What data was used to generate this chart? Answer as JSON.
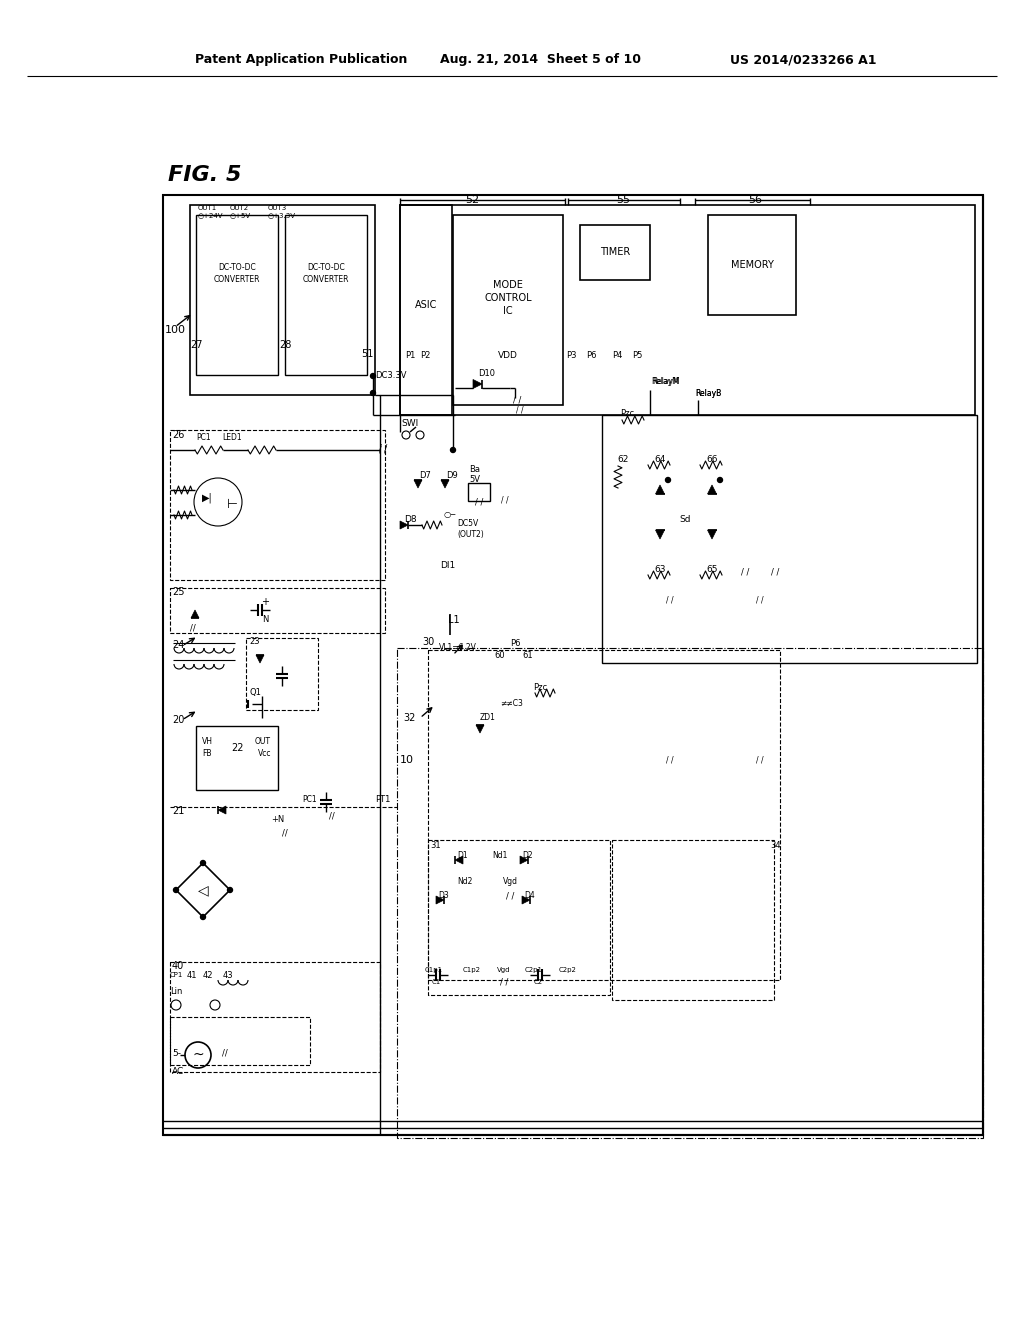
{
  "bg_color": "#ffffff",
  "header_left": "Patent Application Publication",
  "header_mid": "Aug. 21, 2014  Sheet 5 of 10",
  "header_right": "US 2014/0233266 A1"
}
